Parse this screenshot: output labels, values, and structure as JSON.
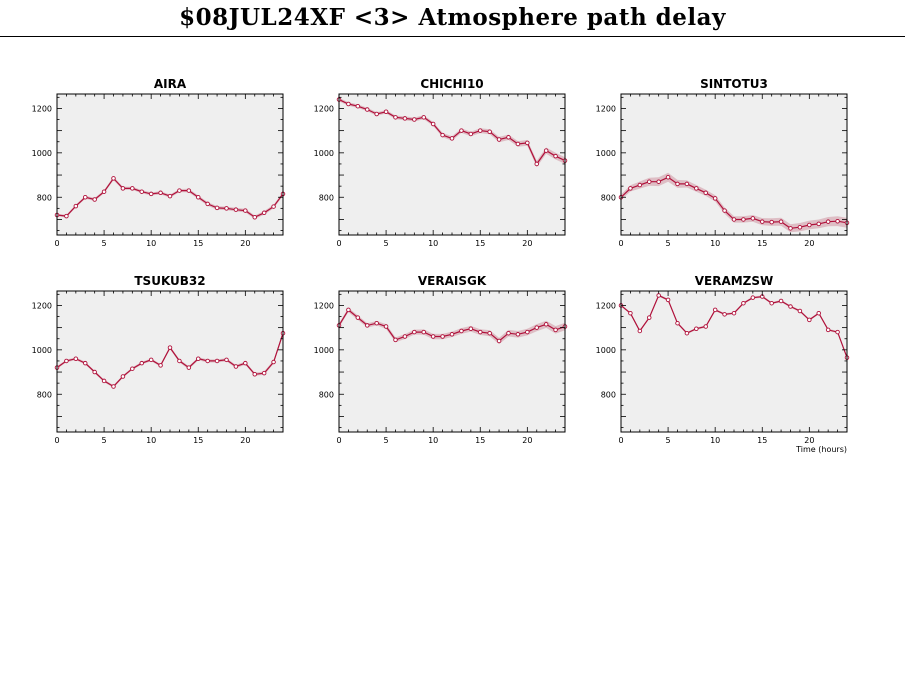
{
  "title": "$08JUL24XF <3>  Atmosphere path delay",
  "chart_data": {
    "type": "line",
    "xlabel": "Time (hours)",
    "xlim": [
      0,
      24
    ],
    "ylim": [
      630,
      1265
    ],
    "xticks": [
      0,
      5,
      10,
      15,
      20
    ],
    "yticks": [
      800,
      1000,
      1200
    ],
    "colors": {
      "line": "#b0103a",
      "band": "#dcb8c0",
      "plot_bg": "#efefef"
    },
    "panels": [
      {
        "name": "AIRA",
        "x": [
          0,
          1,
          2,
          3,
          4,
          5,
          6,
          7,
          8,
          9,
          10,
          11,
          12,
          13,
          14,
          15,
          16,
          17,
          18,
          19,
          20,
          21,
          22,
          23,
          24
        ],
        "y": [
          720,
          715,
          760,
          800,
          790,
          825,
          885,
          840,
          840,
          825,
          815,
          820,
          805,
          830,
          830,
          800,
          770,
          752,
          750,
          744,
          740,
          710,
          730,
          758,
          815
        ],
        "err": [
          6,
          6,
          6,
          7,
          7,
          7,
          8,
          7,
          7,
          7,
          7,
          7,
          7,
          7,
          8,
          8,
          8,
          8,
          8,
          8,
          8,
          8,
          8,
          8,
          9
        ]
      },
      {
        "name": "CHICHI10",
        "x": [
          0,
          1,
          2,
          3,
          4,
          5,
          6,
          7,
          8,
          9,
          10,
          11,
          12,
          13,
          14,
          15,
          16,
          17,
          18,
          19,
          20,
          21,
          22,
          23,
          24
        ],
        "y": [
          1240,
          1220,
          1210,
          1195,
          1175,
          1185,
          1160,
          1155,
          1150,
          1160,
          1130,
          1080,
          1065,
          1100,
          1085,
          1100,
          1095,
          1060,
          1070,
          1040,
          1045,
          950,
          1010,
          985,
          965
        ],
        "err": [
          8,
          8,
          8,
          8,
          8,
          8,
          8,
          9,
          9,
          9,
          9,
          10,
          10,
          10,
          10,
          11,
          11,
          12,
          12,
          13,
          13,
          14,
          14,
          15,
          15
        ]
      },
      {
        "name": "SINTOTU3",
        "x": [
          0,
          1,
          2,
          3,
          4,
          5,
          6,
          7,
          8,
          9,
          10,
          11,
          12,
          13,
          14,
          15,
          16,
          17,
          18,
          19,
          20,
          21,
          22,
          23,
          24
        ],
        "y": [
          800,
          840,
          855,
          870,
          870,
          890,
          860,
          860,
          840,
          820,
          795,
          740,
          700,
          700,
          705,
          690,
          688,
          690,
          660,
          665,
          675,
          680,
          690,
          692,
          685
        ],
        "err": [
          12,
          14,
          16,
          18,
          20,
          20,
          18,
          16,
          15,
          14,
          14,
          14,
          14,
          14,
          15,
          16,
          17,
          18,
          18,
          19,
          20,
          20,
          21,
          22,
          22
        ]
      },
      {
        "name": "TSUKUB32",
        "x": [
          0,
          1,
          2,
          3,
          4,
          5,
          6,
          7,
          8,
          9,
          10,
          11,
          12,
          13,
          14,
          15,
          16,
          17,
          18,
          19,
          20,
          21,
          22,
          23,
          24
        ],
        "y": [
          920,
          950,
          960,
          940,
          900,
          860,
          835,
          880,
          915,
          940,
          955,
          930,
          1010,
          950,
          920,
          960,
          950,
          950,
          955,
          925,
          940,
          890,
          895,
          945,
          1075
        ],
        "err": [
          6,
          6,
          6,
          6,
          6,
          6,
          6,
          6,
          6,
          6,
          6,
          6,
          7,
          7,
          7,
          7,
          7,
          7,
          7,
          7,
          7,
          7,
          8,
          8,
          9
        ]
      },
      {
        "name": "VERAISGK",
        "x": [
          0,
          1,
          2,
          3,
          4,
          5,
          6,
          7,
          8,
          9,
          10,
          11,
          12,
          13,
          14,
          15,
          16,
          17,
          18,
          19,
          20,
          21,
          22,
          23,
          24
        ],
        "y": [
          1110,
          1180,
          1145,
          1110,
          1120,
          1105,
          1045,
          1060,
          1080,
          1080,
          1060,
          1060,
          1070,
          1085,
          1095,
          1080,
          1075,
          1040,
          1075,
          1070,
          1080,
          1100,
          1115,
          1090,
          1105
        ],
        "err": [
          9,
          10,
          10,
          10,
          10,
          11,
          11,
          11,
          11,
          12,
          12,
          12,
          12,
          13,
          13,
          13,
          14,
          14,
          15,
          15,
          15,
          16,
          16,
          17,
          17
        ]
      },
      {
        "name": "VERAMZSW",
        "x": [
          0,
          1,
          2,
          3,
          4,
          5,
          6,
          7,
          8,
          9,
          10,
          11,
          12,
          13,
          14,
          15,
          16,
          17,
          18,
          19,
          20,
          21,
          22,
          23,
          24
        ],
        "y": [
          1200,
          1165,
          1085,
          1145,
          1245,
          1225,
          1120,
          1075,
          1095,
          1105,
          1180,
          1160,
          1165,
          1210,
          1235,
          1240,
          1210,
          1220,
          1195,
          1175,
          1135,
          1165,
          1090,
          1080,
          965
        ],
        "err": [
          5,
          5,
          5,
          5,
          5,
          5,
          5,
          5,
          5,
          5,
          5,
          5,
          5,
          5,
          5,
          5,
          5,
          5,
          5,
          5,
          5,
          5,
          5,
          5,
          6
        ]
      }
    ]
  }
}
